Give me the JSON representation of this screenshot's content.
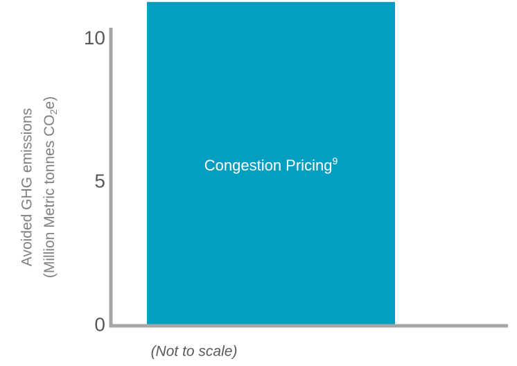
{
  "chart_data": {
    "type": "bar",
    "categories": [
      "Congestion Pricing"
    ],
    "category_footnotes": [
      "9"
    ],
    "values": [
      11.3
    ],
    "color": "#049fc0",
    "ylim": [
      0,
      10.4
    ],
    "yticks": [
      0,
      5,
      10
    ],
    "y_label": {
      "line1": "Avoided GHG emissions",
      "line2": [
        "(Million Metric tonnes CO",
        "2",
        "e)"
      ]
    },
    "note": "(Not to scale)"
  }
}
